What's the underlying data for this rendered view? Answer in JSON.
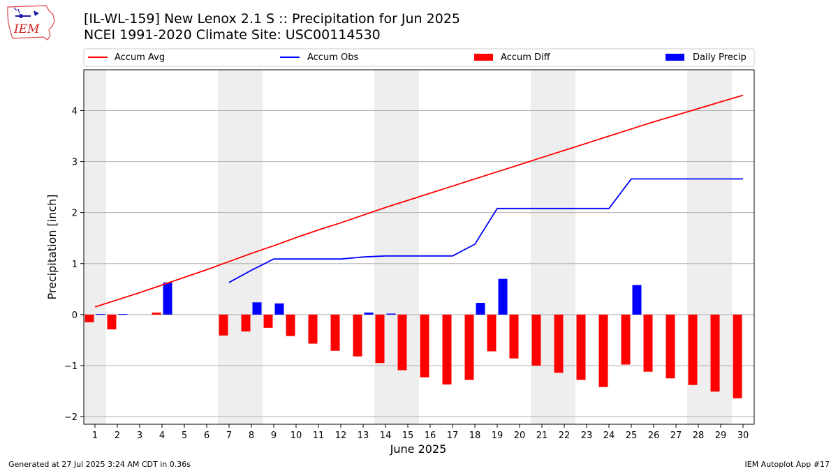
{
  "header": {
    "title_line1": "[IL-WL-159] New Lenox 2.1 S :: Precipitation for Jun 2025",
    "title_line2": "NCEI 1991-2020 Climate Site: USC00114530"
  },
  "logo": {
    "text": "IEM",
    "icon": "iem-iowa-logo"
  },
  "footer": {
    "left": "Generated at 27 Jul 2025 3:24 AM CDT in 0.36s",
    "right": "IEM Autoplot App #17"
  },
  "colors": {
    "accum_avg": "#ff0000",
    "accum_obs": "#0000ff",
    "accum_diff": "#ff0000",
    "daily_precip": "#0000ff",
    "weekend_shade": "#eeeeee",
    "grid": "#b0b0b0"
  },
  "chart_data": {
    "type": "bar",
    "xlabel": "June 2025",
    "ylabel": "Precipitation [inch]",
    "xlim": [
      0.5,
      30.5
    ],
    "ylim": [
      -2.15,
      4.8
    ],
    "yticks": [
      -2,
      -1,
      0,
      1,
      2,
      3,
      4
    ],
    "ytick_labels": [
      "−2",
      "−1",
      "0",
      "1",
      "2",
      "3",
      "4"
    ],
    "grid": "horizontal",
    "legend_position": "top",
    "legend": [
      "Accum Avg",
      "Accum Obs",
      "Accum Diff",
      "Daily Precip"
    ],
    "days": [
      1,
      2,
      3,
      4,
      5,
      6,
      7,
      8,
      9,
      10,
      11,
      12,
      13,
      14,
      15,
      16,
      17,
      18,
      19,
      20,
      21,
      22,
      23,
      24,
      25,
      26,
      27,
      28,
      29,
      30
    ],
    "weekend_days": [
      1,
      7,
      8,
      14,
      15,
      21,
      22,
      28,
      29
    ],
    "series": [
      {
        "name": "Accum Avg",
        "kind": "line",
        "values": [
          0.15,
          0.29,
          0.43,
          0.58,
          0.73,
          0.88,
          1.04,
          1.2,
          1.35,
          1.51,
          1.66,
          1.8,
          1.95,
          2.1,
          2.24,
          2.38,
          2.52,
          2.66,
          2.8,
          2.94,
          3.08,
          3.22,
          3.36,
          3.5,
          3.64,
          3.78,
          3.91,
          4.04,
          4.17,
          4.3
        ]
      },
      {
        "name": "Accum Obs",
        "kind": "line",
        "values": [
          null,
          null,
          null,
          null,
          null,
          null,
          0.63,
          0.87,
          1.09,
          1.09,
          1.09,
          1.09,
          1.13,
          1.15,
          1.15,
          1.15,
          1.15,
          1.38,
          2.08,
          2.08,
          2.08,
          2.08,
          2.08,
          2.08,
          2.66,
          2.66,
          2.66,
          2.66,
          2.66,
          2.66
        ]
      },
      {
        "name": "Accum Diff",
        "kind": "bar",
        "values": [
          -0.15,
          -0.29,
          null,
          0.04,
          null,
          null,
          -0.41,
          -0.33,
          -0.26,
          -0.42,
          -0.57,
          -0.71,
          -0.82,
          -0.95,
          -1.09,
          -1.23,
          -1.37,
          -1.28,
          -0.72,
          -0.86,
          -1.0,
          -1.14,
          -1.28,
          -1.42,
          -0.98,
          -1.12,
          -1.25,
          -1.38,
          -1.51,
          -1.64
        ]
      },
      {
        "name": "Daily Precip",
        "kind": "bar",
        "values": [
          0.01,
          0.01,
          null,
          0.63,
          null,
          null,
          null,
          0.24,
          0.22,
          null,
          null,
          null,
          0.04,
          0.02,
          null,
          null,
          null,
          0.23,
          0.7,
          null,
          null,
          null,
          null,
          null,
          0.58,
          null,
          null,
          null,
          null,
          null
        ]
      }
    ]
  }
}
